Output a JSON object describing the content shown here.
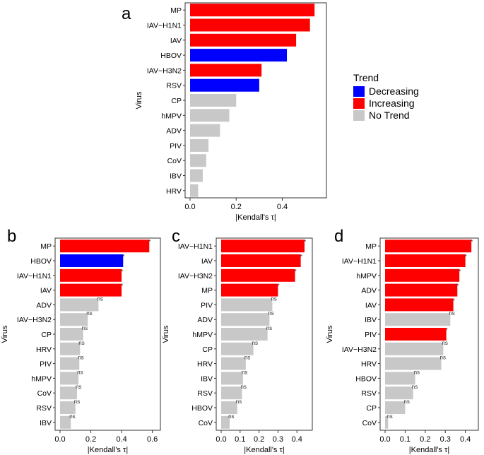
{
  "legend": {
    "title": "Trend",
    "items": [
      {
        "label": "Decreasing",
        "color": "#0000ff"
      },
      {
        "label": "Increasing",
        "color": "#ff0000"
      },
      {
        "label": "No Trend",
        "color": "#c8c8c8"
      }
    ]
  },
  "chart_data": [
    {
      "panel": "a",
      "type": "bar",
      "orientation": "horizontal",
      "xlabel": "|Kendall's τ|",
      "ylabel": "Virus",
      "xlim": [
        0,
        0.57
      ],
      "xticks": [
        "0.0",
        "0.2",
        "0.4"
      ],
      "xtick_values": [
        0,
        0.2,
        0.4
      ],
      "categories": [
        "MP",
        "IAV−H1N1",
        "IAV",
        "HBOV",
        "IAV−H3N2",
        "RSV",
        "CP",
        "hMPV",
        "ADV",
        "PIV",
        "CoV",
        "IBV",
        "HRV"
      ],
      "values": [
        0.54,
        0.52,
        0.46,
        0.42,
        0.31,
        0.3,
        0.2,
        0.17,
        0.13,
        0.08,
        0.07,
        0.055,
        0.035
      ],
      "trend": [
        "Increasing",
        "Increasing",
        "Increasing",
        "Decreasing",
        "Increasing",
        "Decreasing",
        "No Trend",
        "No Trend",
        "No Trend",
        "No Trend",
        "No Trend",
        "No Trend",
        "No Trend"
      ],
      "annotations": [
        "",
        "",
        "",
        "",
        "",
        "",
        "",
        "",
        "",
        "",
        "",
        "",
        ""
      ]
    },
    {
      "panel": "b",
      "type": "bar",
      "orientation": "horizontal",
      "xlabel": "|Kendall's τ|",
      "ylabel": "Virus",
      "xlim": [
        0,
        0.62
      ],
      "xticks": [
        "0.0",
        "0.2",
        "0.4",
        "0.6"
      ],
      "xtick_values": [
        0,
        0.2,
        0.4,
        0.6
      ],
      "categories": [
        "MP",
        "HBOV",
        "IAV−H1N1",
        "IAV",
        "ADV",
        "IAV−H3N2",
        "CP",
        "HRV",
        "PIV",
        "hMPV",
        "CoV",
        "RSV",
        "IBV"
      ],
      "values": [
        0.58,
        0.41,
        0.4,
        0.4,
        0.25,
        0.18,
        0.15,
        0.13,
        0.125,
        0.12,
        0.11,
        0.1,
        0.07
      ],
      "trend": [
        "Increasing",
        "Decreasing",
        "Increasing",
        "Increasing",
        "No Trend",
        "No Trend",
        "No Trend",
        "No Trend",
        "No Trend",
        "No Trend",
        "No Trend",
        "No Trend",
        "No Trend"
      ],
      "annotations": [
        "*",
        "*",
        "*",
        "*",
        "ns",
        "ns",
        "ns",
        "ns",
        "ns",
        "ns",
        "ns",
        "ns",
        "ns"
      ]
    },
    {
      "panel": "c",
      "type": "bar",
      "orientation": "horizontal",
      "xlabel": "|Kendall's τ|",
      "ylabel": "Virus",
      "xlim": [
        0,
        0.455
      ],
      "xticks": [
        "0.0",
        "0.1",
        "0.2",
        "0.3",
        "0.4"
      ],
      "xtick_values": [
        0,
        0.1,
        0.2,
        0.3,
        0.4
      ],
      "categories": [
        "IAV−H1N1",
        "IAV",
        "IAV−H3N2",
        "MP",
        "PIV",
        "ADV",
        "hMPV",
        "CP",
        "HRV",
        "IBV",
        "RSV",
        "HBOV",
        "CoV"
      ],
      "values": [
        0.44,
        0.42,
        0.39,
        0.3,
        0.27,
        0.255,
        0.245,
        0.17,
        0.13,
        0.115,
        0.11,
        0.085,
        0.045
      ],
      "trend": [
        "Increasing",
        "Increasing",
        "Increasing",
        "Increasing",
        "No Trend",
        "No Trend",
        "No Trend",
        "No Trend",
        "No Trend",
        "No Trend",
        "No Trend",
        "No Trend",
        "No Trend"
      ],
      "annotations": [
        "*",
        "*",
        "*",
        "*",
        "ns",
        "ns",
        "ns",
        "ns",
        "ns",
        "ns",
        "ns",
        "ns",
        "ns"
      ]
    },
    {
      "panel": "d",
      "type": "bar",
      "orientation": "horizontal",
      "xlabel": "|Kendall's τ|",
      "ylabel": "Virus",
      "xlim": [
        0,
        0.44
      ],
      "xticks": [
        "0.0",
        "0.1",
        "0.2",
        "0.3",
        "0.4"
      ],
      "xtick_values": [
        0,
        0.1,
        0.2,
        0.3,
        0.4
      ],
      "categories": [
        "MP",
        "IAV−H1N1",
        "hMPV",
        "ADV",
        "IAV",
        "IBV",
        "PIV",
        "IAV−H3N2",
        "HRV",
        "HBOV",
        "RSV",
        "CP",
        "CoV"
      ],
      "values": [
        0.43,
        0.4,
        0.37,
        0.36,
        0.34,
        0.325,
        0.305,
        0.29,
        0.28,
        0.15,
        0.14,
        0.1,
        0.015
      ],
      "trend": [
        "Increasing",
        "Increasing",
        "Increasing",
        "Increasing",
        "Increasing",
        "No Trend",
        "Increasing",
        "No Trend",
        "No Trend",
        "No Trend",
        "No Trend",
        "No Trend",
        "No Trend"
      ],
      "annotations": [
        "*",
        "*",
        "*",
        "*",
        "*",
        "ns",
        "*",
        "ns",
        "ns",
        "ns",
        "ns",
        "ns",
        "ns"
      ]
    }
  ]
}
